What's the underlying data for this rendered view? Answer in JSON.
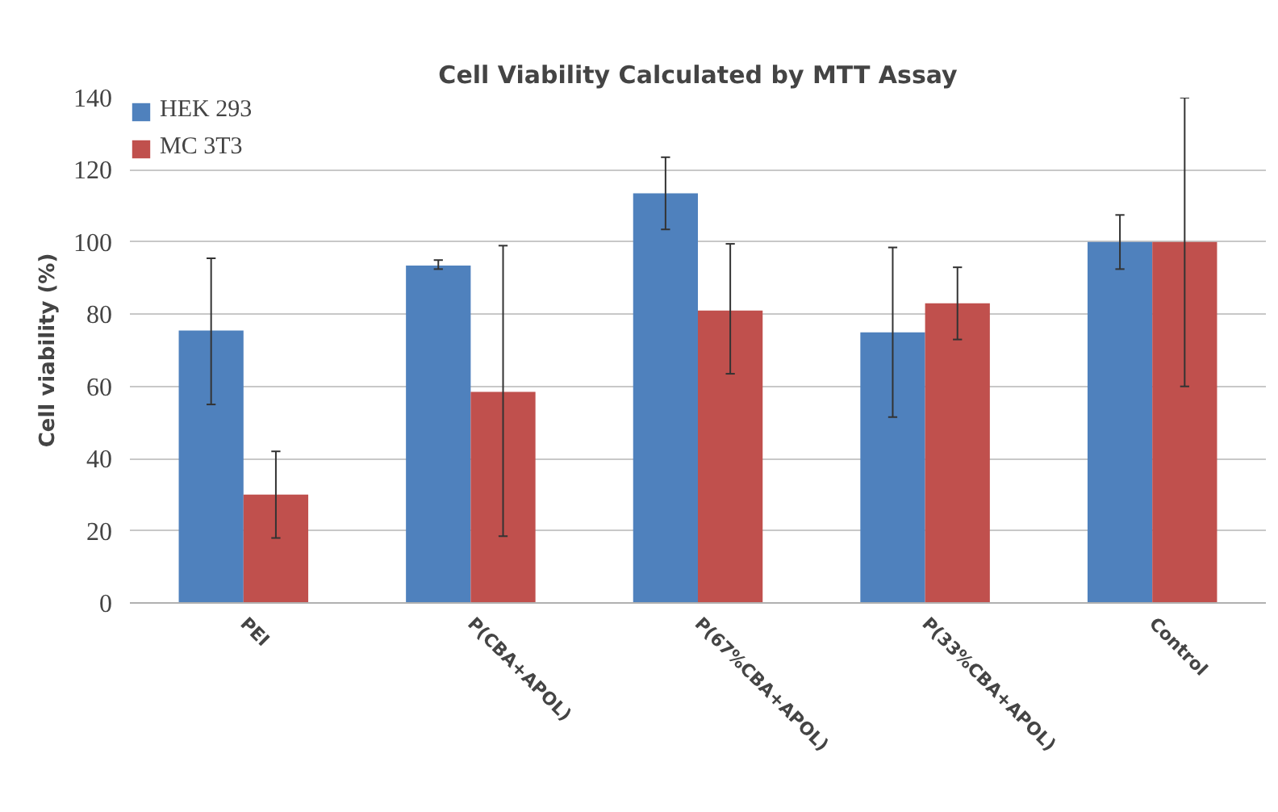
{
  "chart_data": {
    "type": "bar",
    "title": "Cell Viability Calculated by MTT Assay",
    "ylabel": "Cell viability (%)",
    "categories": [
      "PEI",
      "P(CBA+APOL)",
      "P(67%CBA+APOL)",
      "P(33%CBA+APOL)",
      "Control"
    ],
    "series": [
      {
        "name": "HEK 293",
        "color": "#4f81bd",
        "values": [
          75.5,
          93.5,
          113.5,
          75,
          100
        ],
        "errors": [
          [
            55,
            95.5
          ],
          [
            92.5,
            95
          ],
          [
            103.5,
            123.5
          ],
          [
            51.5,
            98.5
          ],
          [
            92.5,
            107.5
          ]
        ]
      },
      {
        "name": "MC 3T3",
        "color": "#c0504d",
        "values": [
          30,
          58.5,
          81,
          83,
          100
        ],
        "errors": [
          [
            18,
            42
          ],
          [
            18.5,
            99
          ],
          [
            63.5,
            99.5
          ],
          [
            73,
            93
          ],
          [
            60,
            140
          ]
        ]
      }
    ],
    "ylim": [
      0,
      140
    ],
    "yticks": [
      0,
      20,
      40,
      60,
      80,
      100,
      120,
      140
    ],
    "grid": "y",
    "legend": "top left"
  }
}
